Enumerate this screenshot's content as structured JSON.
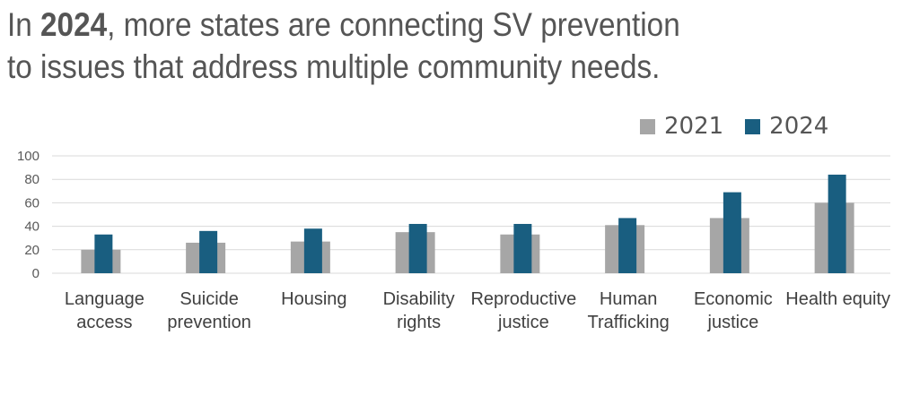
{
  "title": {
    "line1_prefix": "In ",
    "line1_bold": "2024",
    "line1_suffix": ", more states are connecting SV prevention",
    "line2": "to issues that address multiple community needs."
  },
  "colors": {
    "series_2021": "#a6a6a6",
    "series_2024": "#195e80",
    "grid": "#d9d9d9"
  },
  "chart_data": {
    "type": "bar",
    "categories": [
      [
        "Language",
        "access"
      ],
      [
        "Suicide",
        "prevention"
      ],
      [
        "Housing"
      ],
      [
        "Disability",
        "rights"
      ],
      [
        "Reproductive",
        "justice"
      ],
      [
        "Human",
        "Trafficking"
      ],
      [
        "Economic",
        "justice"
      ],
      [
        "Health equity"
      ]
    ],
    "series": [
      {
        "name": "2021",
        "values": [
          20,
          26,
          27,
          35,
          33,
          41,
          47,
          60
        ]
      },
      {
        "name": "2024",
        "values": [
          33,
          36,
          38,
          42,
          42,
          47,
          69,
          84
        ]
      }
    ],
    "ylim": [
      0,
      100
    ],
    "yticks": [
      0,
      20,
      40,
      60,
      80,
      100
    ],
    "grid": true,
    "legend": "top-right"
  }
}
